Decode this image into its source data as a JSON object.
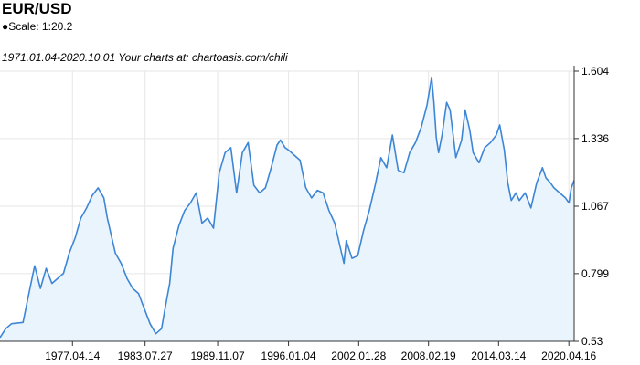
{
  "header": {
    "title": "EUR/USD",
    "scale": "●Scale: 1:20.2",
    "subtitle": "1971.01.04-2020.10.01 Your charts at: chartoasis.com/chili"
  },
  "colors": {
    "line": "#3d86d6",
    "fill": "#eaf4fc",
    "grid": "#e6e6e6",
    "axis": "#333333"
  },
  "chart_data": {
    "type": "area",
    "title": "EUR/USD",
    "xlabel": "",
    "ylabel": "",
    "x_range": [
      1971.0,
      2020.75
    ],
    "ylim": [
      0.53,
      1.604
    ],
    "y_ticks": [
      1.604,
      1.336,
      1.067,
      0.799,
      0.53
    ],
    "y_tick_labels": [
      "1.604",
      "1.336",
      "1.067",
      "0.799",
      "0.53"
    ],
    "x_ticks": [
      1977.28,
      1983.57,
      1989.86,
      1996.0,
      2002.08,
      2008.13,
      2014.2,
      2020.29
    ],
    "x_tick_labels": [
      "1977.04.14",
      "1983.07.27",
      "1989.11.07",
      "1996.01.04",
      "2002.01.28",
      "2008.02.19",
      "2014.03.14",
      "2020.04.16"
    ],
    "grid": true,
    "legend": "none",
    "series": [
      {
        "x": [
          1971.0,
          1971.5,
          1972.0,
          1973.0,
          1973.5,
          1974.0,
          1974.5,
          1975.0,
          1975.5,
          1976.0,
          1976.5,
          1977.0,
          1977.5,
          1978.0,
          1978.5,
          1979.0,
          1979.5,
          1980.0,
          1980.3,
          1980.7,
          1981.0,
          1981.5,
          1982.0,
          1982.5,
          1983.0,
          1983.5,
          1984.0,
          1984.5,
          1985.0,
          1985.3,
          1985.7,
          1986.0,
          1986.5,
          1987.0,
          1987.5,
          1988.0,
          1988.5,
          1989.0,
          1989.5,
          1990.0,
          1990.5,
          1991.0,
          1991.5,
          1992.0,
          1992.5,
          1993.0,
          1993.5,
          1994.0,
          1994.5,
          1995.0,
          1995.3,
          1995.7,
          1996.0,
          1996.5,
          1997.0,
          1997.5,
          1998.0,
          1998.5,
          1999.0,
          1999.5,
          2000.0,
          2000.4,
          2000.8,
          2001.0,
          2001.5,
          2002.0,
          2002.5,
          2003.0,
          2003.5,
          2004.0,
          2004.5,
          2005.0,
          2005.5,
          2006.0,
          2006.5,
          2007.0,
          2007.5,
          2008.0,
          2008.4,
          2008.6,
          2008.8,
          2009.0,
          2009.3,
          2009.7,
          2010.0,
          2010.5,
          2011.0,
          2011.3,
          2011.7,
          2012.0,
          2012.5,
          2013.0,
          2013.5,
          2014.0,
          2014.3,
          2014.7,
          2015.0,
          2015.3,
          2015.7,
          2016.0,
          2016.5,
          2017.0,
          2017.5,
          2018.0,
          2018.3,
          2018.7,
          2019.0,
          2019.5,
          2020.0,
          2020.3,
          2020.5,
          2020.75
        ],
        "y": [
          0.545,
          0.58,
          0.6,
          0.605,
          0.72,
          0.83,
          0.74,
          0.82,
          0.76,
          0.78,
          0.8,
          0.88,
          0.94,
          1.02,
          1.06,
          1.11,
          1.14,
          1.1,
          1.02,
          0.94,
          0.88,
          0.84,
          0.78,
          0.74,
          0.72,
          0.66,
          0.6,
          0.56,
          0.58,
          0.66,
          0.76,
          0.9,
          0.99,
          1.05,
          1.08,
          1.12,
          1.0,
          1.02,
          0.98,
          1.2,
          1.28,
          1.3,
          1.12,
          1.28,
          1.32,
          1.15,
          1.12,
          1.14,
          1.22,
          1.31,
          1.33,
          1.3,
          1.29,
          1.27,
          1.25,
          1.14,
          1.1,
          1.13,
          1.12,
          1.05,
          1.0,
          0.92,
          0.84,
          0.93,
          0.86,
          0.87,
          0.97,
          1.05,
          1.15,
          1.26,
          1.22,
          1.35,
          1.21,
          1.2,
          1.28,
          1.32,
          1.38,
          1.47,
          1.58,
          1.48,
          1.34,
          1.28,
          1.35,
          1.48,
          1.45,
          1.26,
          1.33,
          1.45,
          1.37,
          1.28,
          1.24,
          1.3,
          1.32,
          1.35,
          1.39,
          1.29,
          1.16,
          1.09,
          1.12,
          1.09,
          1.12,
          1.06,
          1.16,
          1.22,
          1.18,
          1.16,
          1.14,
          1.12,
          1.1,
          1.08,
          1.14,
          1.17
        ]
      }
    ]
  }
}
